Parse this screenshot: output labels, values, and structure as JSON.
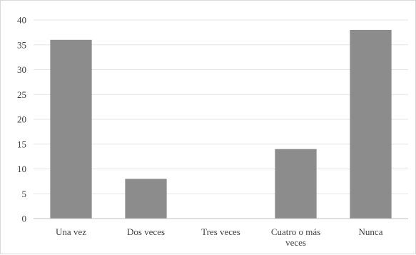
{
  "chart_data": {
    "type": "bar",
    "title": "",
    "xlabel": "",
    "ylabel": "",
    "categories": [
      [
        "Una  vez"
      ],
      [
        "Dos  veces"
      ],
      [
        "Tres  veces"
      ],
      [
        "Cuatro  o más",
        "veces"
      ],
      [
        "Nunca"
      ]
    ],
    "values": [
      36,
      8,
      0,
      14,
      38
    ],
    "ylim": [
      0,
      40
    ],
    "yticks": [
      "0",
      "5",
      "10",
      "15",
      "20",
      "25",
      "30",
      "35",
      "40"
    ],
    "grid": true,
    "legend": "none",
    "colors": {
      "bar": "#8c8c8c",
      "grid": "#e6e6e6",
      "axis": "#bfbfbf",
      "text": "#404040"
    }
  }
}
